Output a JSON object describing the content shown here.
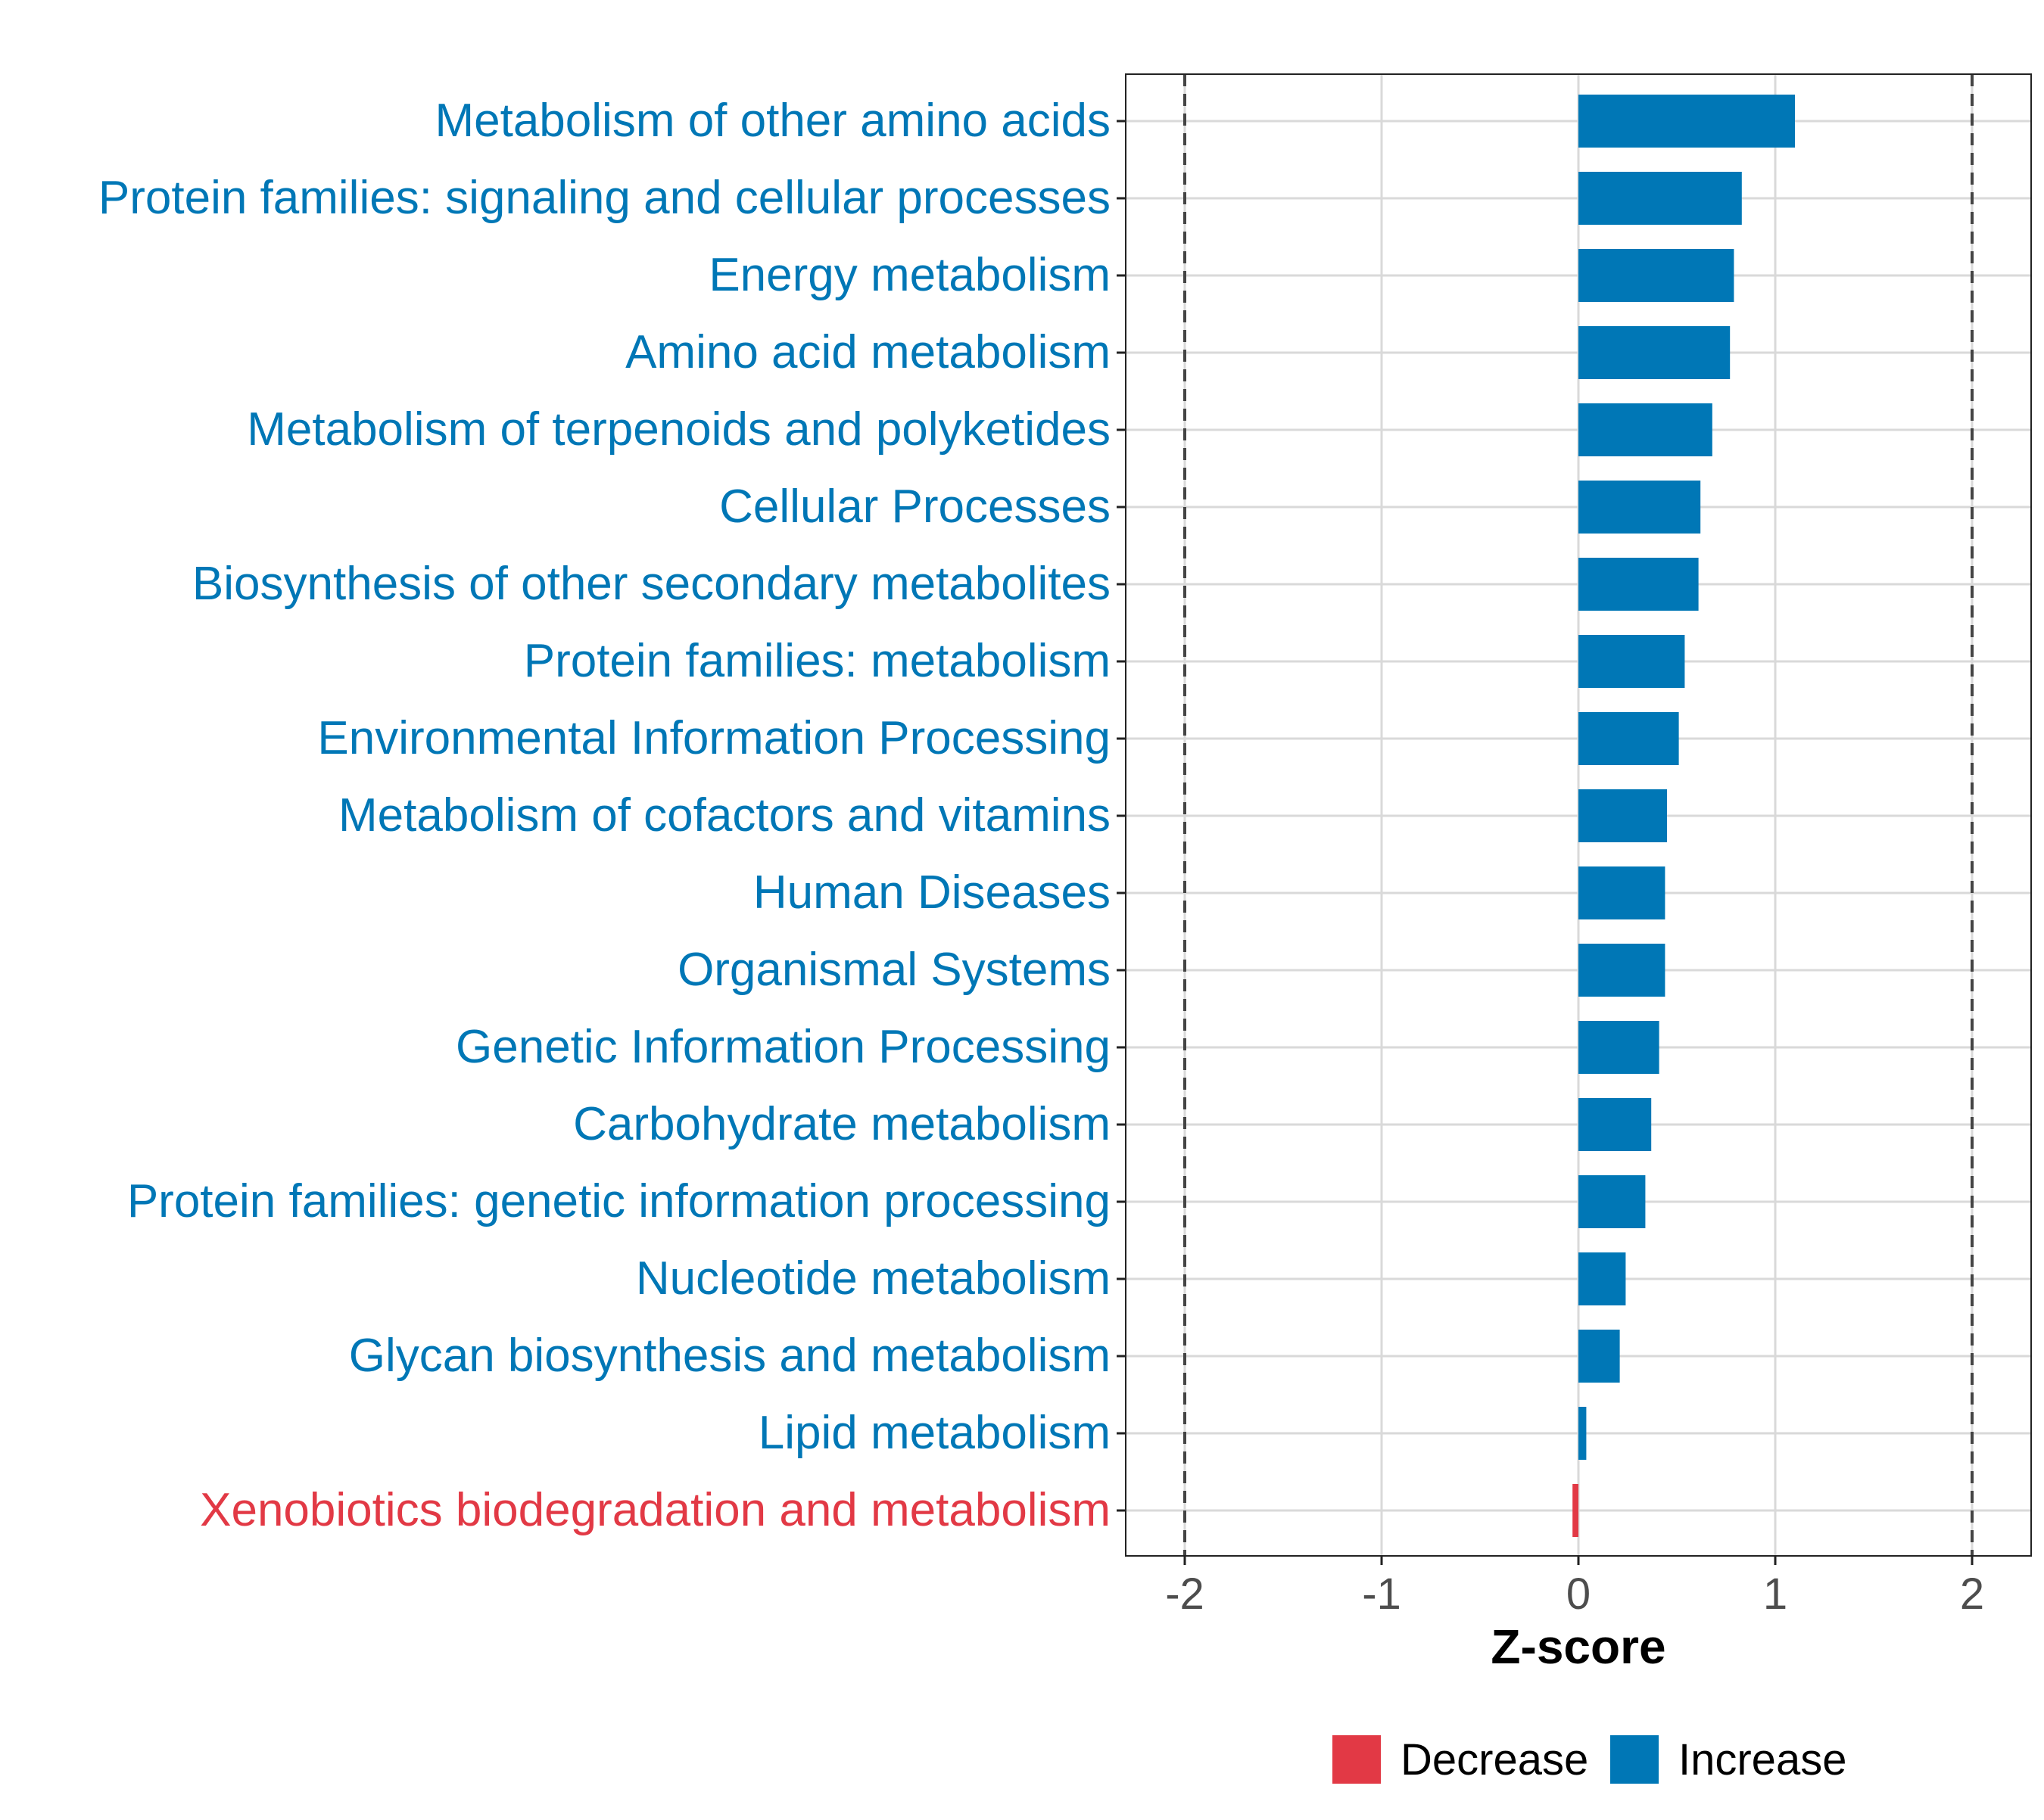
{
  "chart_data": {
    "type": "bar",
    "orientation": "horizontal",
    "title": "",
    "xlabel": "Z-score",
    "ylabel": "",
    "xlim": [
      -2.3,
      2.3
    ],
    "xticks": [
      -2,
      -1,
      0,
      1,
      2
    ],
    "xtick_labels": [
      "-2",
      "-1",
      "0",
      "1",
      "2"
    ],
    "reference_lines": [
      -2,
      2
    ],
    "grid": true,
    "legend_position": "bottom",
    "legend": [
      {
        "key": "decrease",
        "label": "Decrease",
        "color": "#E23945"
      },
      {
        "key": "increase",
        "label": "Increase",
        "color": "#0077B6"
      }
    ],
    "categories": [
      "Metabolism of other amino acids",
      "Protein families: signaling and cellular processes",
      "Energy metabolism",
      "Amino acid metabolism",
      "Metabolism of terpenoids and polyketides",
      "Cellular Processes",
      "Biosynthesis of other secondary metabolites",
      "Protein families: metabolism",
      "Environmental Information Processing",
      "Metabolism of cofactors and vitamins",
      "Human Diseases",
      "Organismal Systems",
      "Genetic Information Processing",
      "Carbohydrate metabolism",
      "Protein families: genetic information processing",
      "Nucleotide metabolism",
      "Glycan biosynthesis and metabolism",
      "Lipid metabolism",
      "Xenobiotics biodegradation and metabolism"
    ],
    "values": [
      1.1,
      0.83,
      0.79,
      0.77,
      0.68,
      0.62,
      0.61,
      0.54,
      0.51,
      0.45,
      0.44,
      0.44,
      0.41,
      0.37,
      0.34,
      0.24,
      0.21,
      0.04,
      -0.03
    ],
    "groups": [
      "increase",
      "increase",
      "increase",
      "increase",
      "increase",
      "increase",
      "increase",
      "increase",
      "increase",
      "increase",
      "increase",
      "increase",
      "increase",
      "increase",
      "increase",
      "increase",
      "increase",
      "increase",
      "decrease"
    ]
  }
}
